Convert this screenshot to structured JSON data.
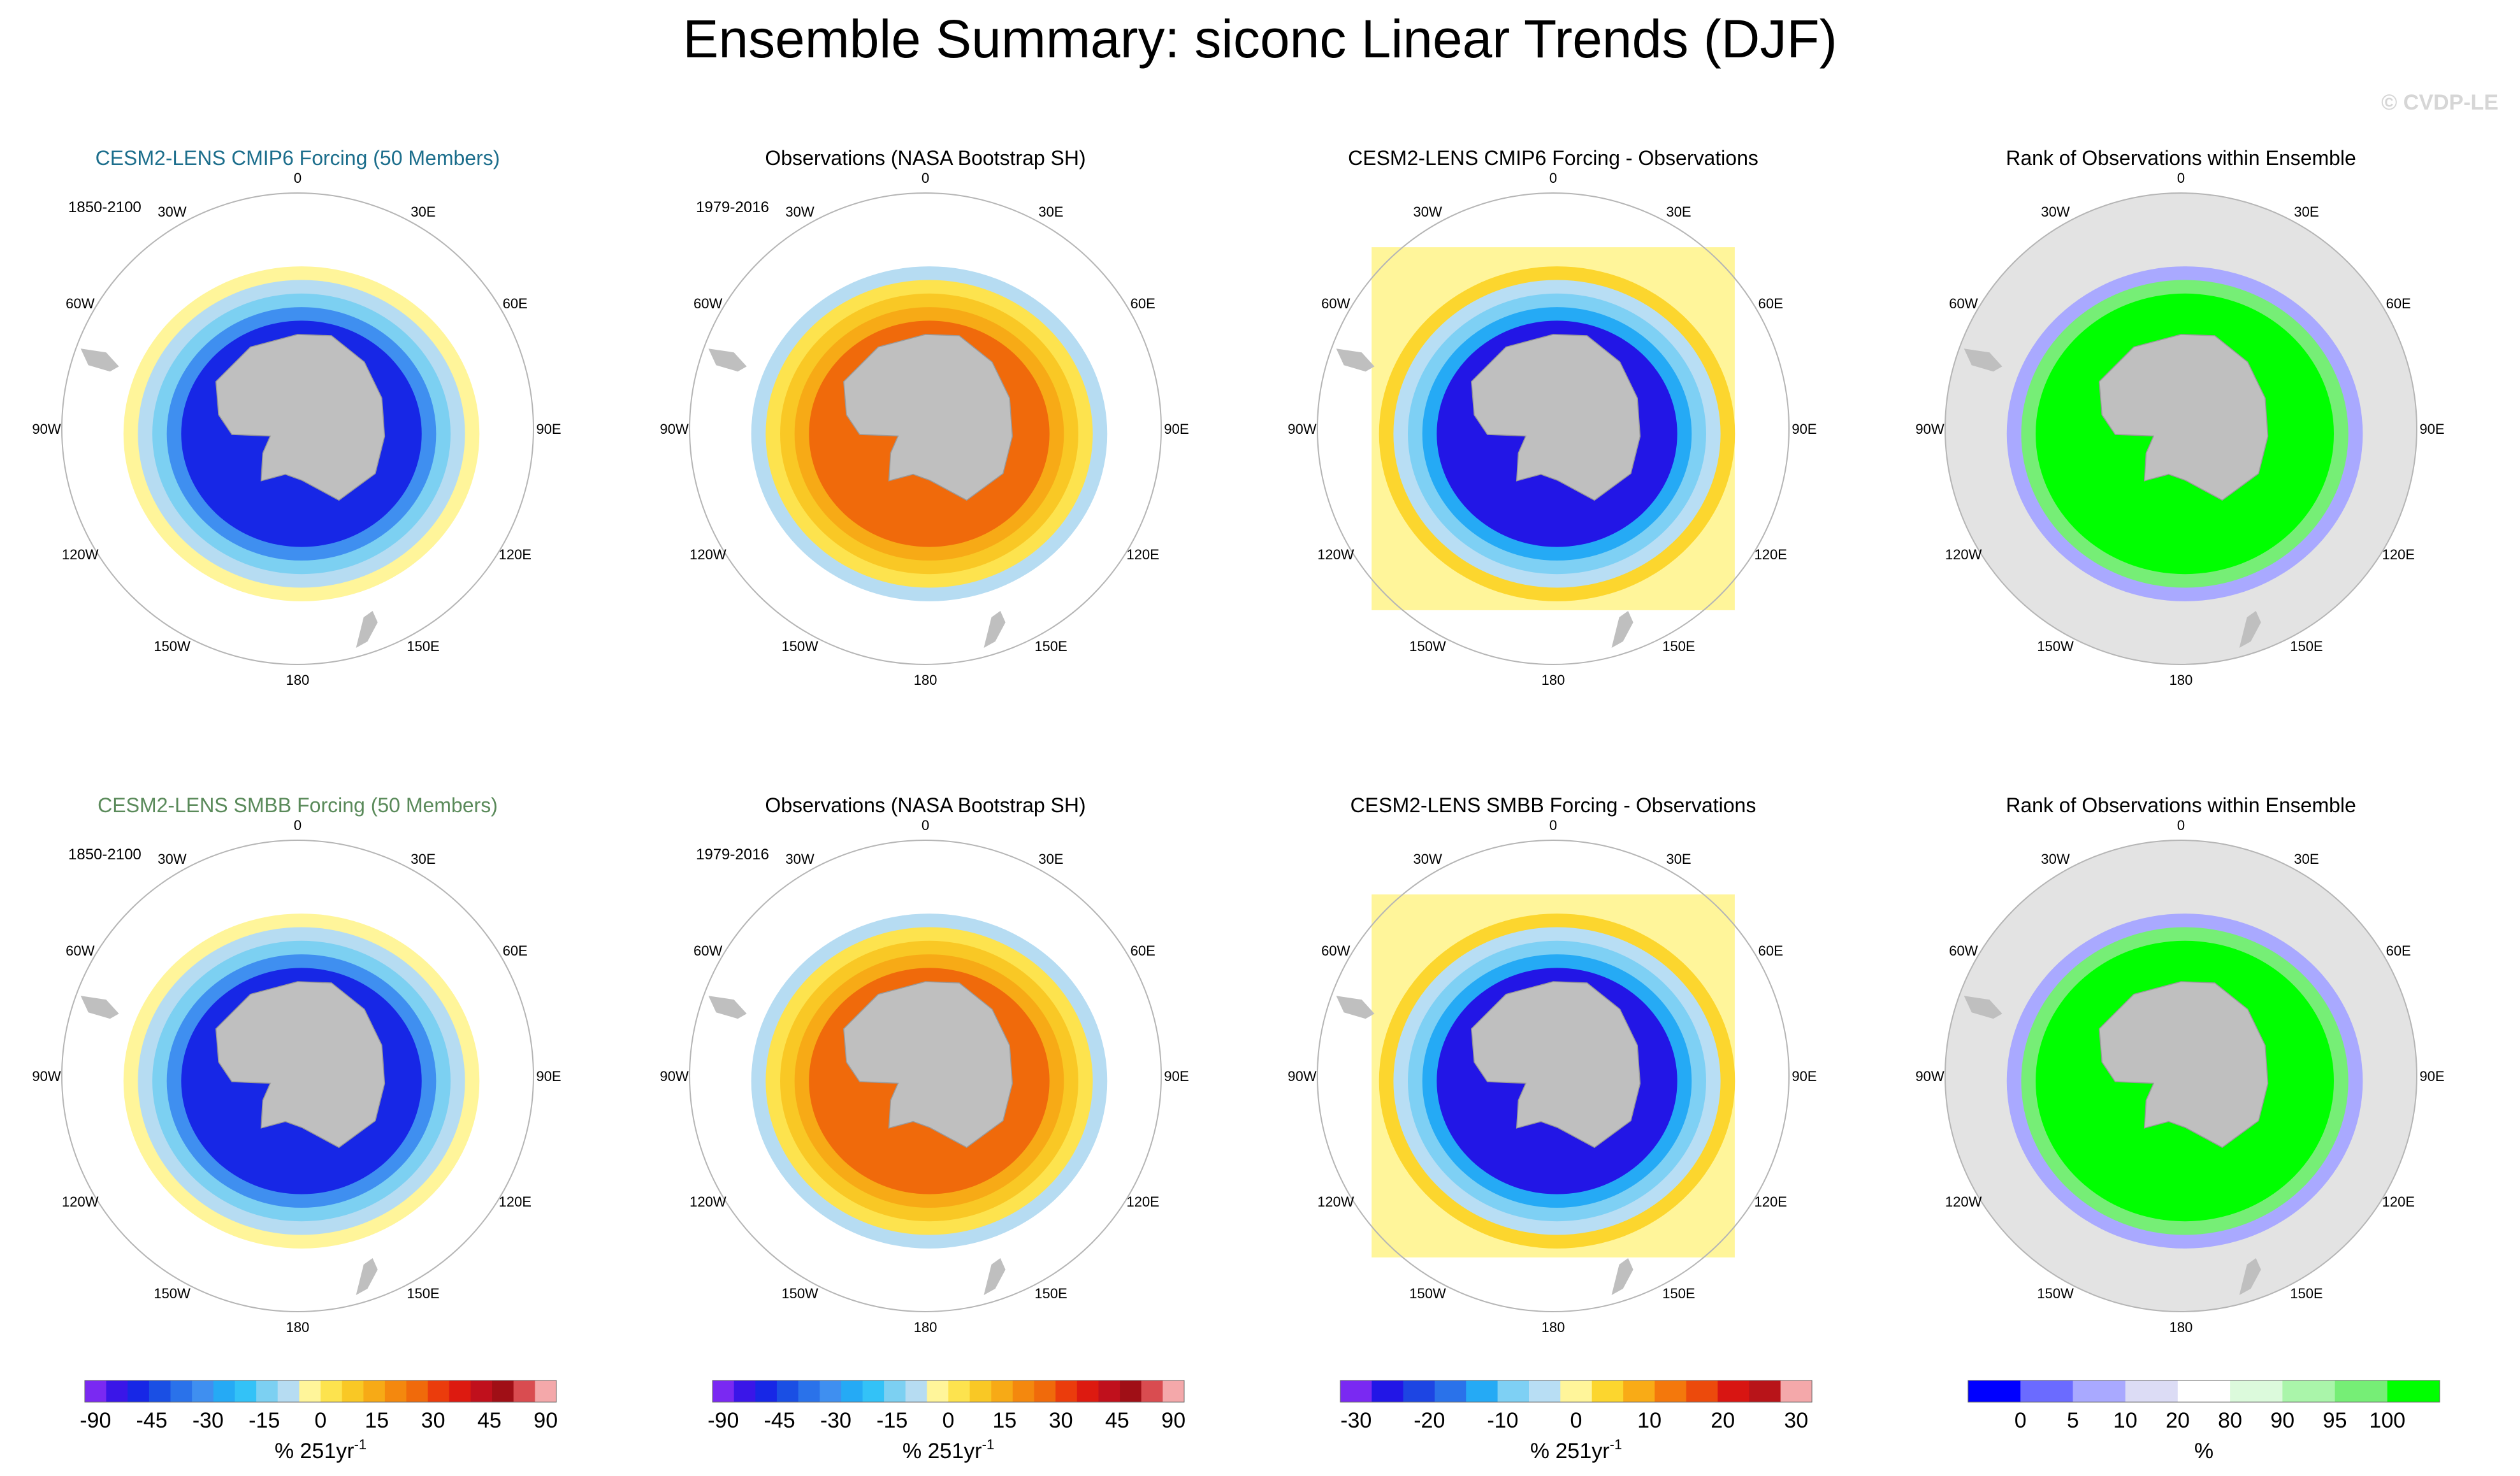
{
  "title": "Ensemble Summary: siconc Linear Trends (DJF)",
  "watermark": "© CVDP-LE",
  "colors": {
    "title_blue": "#1c6e8c",
    "title_green": "#5a8a5a",
    "land": "#bfbfbf",
    "rank_bg": "#e3e3e3"
  },
  "lon_labels": [
    "0",
    "30E",
    "60E",
    "90E",
    "120E",
    "150E",
    "180",
    "150W",
    "120W",
    "90W",
    "60W",
    "30W"
  ],
  "colorbars": [
    {
      "id": "trend90",
      "unit": "% 251yr",
      "unit_exp": "-1",
      "levels": [
        "-90",
        "-45",
        "-30",
        "-15",
        "0",
        "15",
        "30",
        "45",
        "90"
      ],
      "colors": [
        "#7a29f2",
        "#3a16e8",
        "#1727e6",
        "#1a4fe4",
        "#2a72ea",
        "#3f8ff0",
        "#25aaf5",
        "#33c2f7",
        "#7cd0f2",
        "#b6dcf2",
        "#fff59a",
        "#fde34e",
        "#f9c825",
        "#f7aa16",
        "#f4880e",
        "#f06a0b",
        "#eb3c0c",
        "#dd1a10",
        "#c0101c",
        "#a00f16",
        "#d94c50",
        "#f4a8aa"
      ]
    },
    {
      "id": "trend30",
      "unit": "% 251yr",
      "unit_exp": "-1",
      "levels": [
        "-30",
        "-20",
        "-10",
        "0",
        "10",
        "20",
        "30"
      ],
      "colors": [
        "#7a29f2",
        "#2216e6",
        "#1d45e3",
        "#2a72ea",
        "#25aaf5",
        "#7ed0f4",
        "#b8def4",
        "#fff59a",
        "#fcd62e",
        "#f9ab16",
        "#f4780c",
        "#ec4a0c",
        "#d81512",
        "#b81419",
        "#f4a8aa"
      ]
    },
    {
      "id": "rank",
      "unit": "%",
      "levels": [
        "0",
        "5",
        "10",
        "20",
        "80",
        "90",
        "95",
        "100"
      ],
      "colors": [
        "#0000ff",
        "#6b6bff",
        "#a9a9ff",
        "#dcdcf5",
        "#ffffff",
        "#dcfadc",
        "#aaf5aa",
        "#76ee76",
        "#00ff00"
      ]
    }
  ],
  "panels": [
    {
      "title": "CESM2-LENS CMIP6 Forcing (50 Members)",
      "color": "title_blue",
      "period": "1850-2100",
      "kind": "model"
    },
    {
      "title": "Observations (NASA Bootstrap SH)",
      "color": "black",
      "period": "1979-2016",
      "kind": "obs"
    },
    {
      "title": "CESM2-LENS CMIP6 Forcing - Observations",
      "color": "black",
      "period": "",
      "kind": "diff"
    },
    {
      "title": "Rank of Observations within Ensemble",
      "color": "black",
      "period": "",
      "kind": "rank"
    },
    {
      "title": "CESM2-LENS SMBB Forcing (50 Members)",
      "color": "title_green",
      "period": "1850-2100",
      "kind": "model"
    },
    {
      "title": "Observations (NASA Bootstrap SH)",
      "color": "black",
      "period": "1979-2016",
      "kind": "obs"
    },
    {
      "title": "CESM2-LENS SMBB Forcing - Observations",
      "color": "black",
      "period": "",
      "kind": "diff"
    },
    {
      "title": "Rank of Observations within Ensemble",
      "color": "black",
      "period": "",
      "kind": "rank"
    }
  ],
  "chart_data": {
    "type": "heatmap",
    "projection": "south polar stereographic",
    "variable": "siconc",
    "season": "DJF",
    "metric": "linear trend",
    "bands_note": "Approximate dominant colour class per latitude band read from the maps; ring 1 nearest the continent.",
    "band_levels": {
      "model": [
        -40,
        -25,
        -12,
        -6,
        -3
      ],
      "obs": [
        20,
        12,
        8,
        3,
        -8
      ],
      "diff": [
        -25,
        -15,
        -8,
        -3,
        3
      ],
      "rank": [
        100,
        100,
        100,
        95,
        5
      ]
    }
  }
}
